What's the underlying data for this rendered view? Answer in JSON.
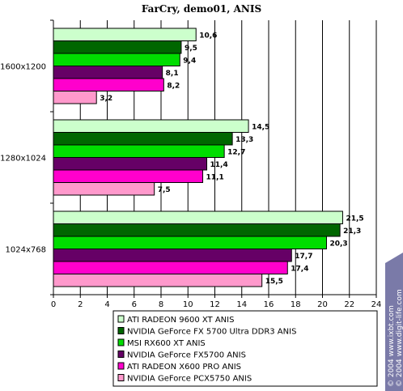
{
  "chart_data": {
    "type": "bar",
    "orientation": "horizontal",
    "title": "FarCry, demo01, ANIS",
    "xlabel": "",
    "ylabel": "",
    "xlim": [
      0,
      24
    ],
    "x_ticks": [
      0,
      2,
      4,
      6,
      8,
      10,
      12,
      14,
      16,
      18,
      20,
      22,
      24
    ],
    "categories": [
      "1600x1200",
      "1280x1024",
      "1024x768"
    ],
    "grid": "vertical",
    "legend_position": "bottom",
    "series": [
      {
        "name": "ATI RADEON 9600 XT ANIS",
        "color": "#ccffcc",
        "values": [
          10.6,
          14.5,
          21.5
        ],
        "labels": [
          "10,6",
          "14,5",
          "21,5"
        ]
      },
      {
        "name": "NVIDIA GeForce FX 5700 Ultra DDR3 ANIS",
        "color": "#006600",
        "values": [
          9.5,
          13.3,
          21.3
        ],
        "labels": [
          "9,5",
          "13,3",
          "21,3"
        ]
      },
      {
        "name": "MSI  RX600 XT   ANIS",
        "color": "#00dd00",
        "values": [
          9.4,
          12.7,
          20.3
        ],
        "labels": [
          "9,4",
          "12,7",
          "20,3"
        ]
      },
      {
        "name": "NVIDIA GeForce FX5700 ANIS",
        "color": "#660066",
        "values": [
          8.1,
          11.4,
          17.7
        ],
        "labels": [
          "8,1",
          "11,4",
          "17,7"
        ]
      },
      {
        "name": "ATI RADEON X600 PRO ANIS",
        "color": "#ff00cc",
        "values": [
          8.2,
          11.1,
          17.4
        ],
        "labels": [
          "8,2",
          "11,1",
          "17,4"
        ]
      },
      {
        "name": "NVIDIA GeForce PCX5750 ANIS",
        "color": "#ff99cc",
        "values": [
          3.2,
          7.5,
          15.5
        ],
        "labels": [
          "3,2",
          "7,5",
          "15,5"
        ]
      }
    ]
  },
  "watermark": {
    "line1": "© 2004 www.ixbt.com",
    "line2": "© 2004 www.digit-life.com"
  },
  "colors": {
    "plot_background": "#ffffff",
    "grid": "#000000",
    "watermark_band": "#7a7aa8"
  }
}
